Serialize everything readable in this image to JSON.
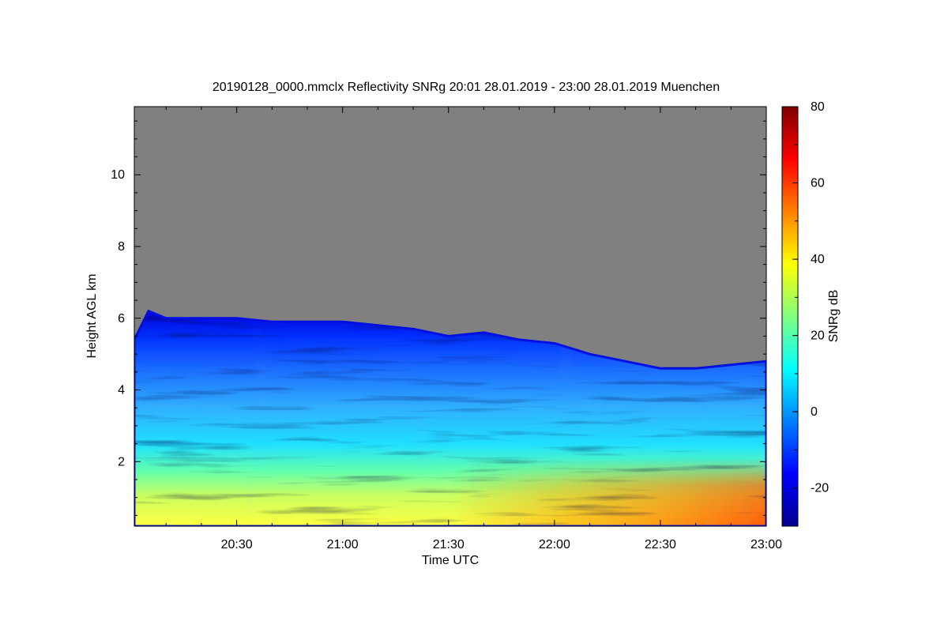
{
  "chart_data": {
    "type": "heatmap",
    "title": "20190128_0000.mmclx Reflectivity SNRg   20:01 28.01.2019 - 23:00 28.01.2019 Muenchen",
    "xlabel": "Time UTC",
    "ylabel": "Height AGL km",
    "colorbar_label": "SNRg dB",
    "x_ticks": [
      "20:30",
      "21:00",
      "21:30",
      "22:00",
      "22:30",
      "23:00"
    ],
    "x_tick_minutes": [
      30,
      60,
      90,
      120,
      150,
      180
    ],
    "x_range_minutes": [
      1,
      180
    ],
    "y_ticks": [
      2,
      4,
      6,
      8,
      10
    ],
    "y_range": [
      0.2,
      11.9
    ],
    "colorbar_ticks": [
      -20,
      0,
      20,
      40,
      60,
      80
    ],
    "colorbar_range": [
      -30,
      80
    ],
    "no_signal_color": "#808080",
    "colormap": [
      "#00008f",
      "#0000ff",
      "#0080ff",
      "#00ffff",
      "#80ff80",
      "#ffff00",
      "#ff8000",
      "#ff0000",
      "#800000"
    ],
    "echo_top_km": [
      [
        1,
        5.4
      ],
      [
        5,
        6.2
      ],
      [
        10,
        6.0
      ],
      [
        20,
        6.0
      ],
      [
        30,
        6.0
      ],
      [
        40,
        5.9
      ],
      [
        50,
        5.9
      ],
      [
        60,
        5.9
      ],
      [
        70,
        5.8
      ],
      [
        80,
        5.7
      ],
      [
        90,
        5.5
      ],
      [
        100,
        5.6
      ],
      [
        110,
        5.4
      ],
      [
        120,
        5.3
      ],
      [
        130,
        5.0
      ],
      [
        140,
        4.8
      ],
      [
        150,
        4.6
      ],
      [
        160,
        4.6
      ],
      [
        170,
        4.7
      ],
      [
        180,
        4.8
      ]
    ],
    "echo_base_km": 0.2
  }
}
